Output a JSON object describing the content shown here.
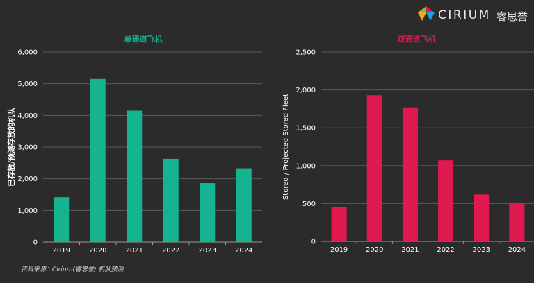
{
  "brand": {
    "name": "CIRIUM",
    "name_cn": "睿思誉",
    "logo_colors": [
      "#e5173f",
      "#7ac143",
      "#f7a81b",
      "#1aa0db"
    ]
  },
  "source": "资料来源：Cirium(睿思誉) 机队预测",
  "colors": {
    "background": "#2b2b2b",
    "narrowbody": "#16b391",
    "widebody": "#e01a50",
    "gridline": "#5a5a5a",
    "text": "#ffffff"
  },
  "chart_data": [
    {
      "type": "bar",
      "title": "单通道飞机",
      "ylabel": "已存放/预测存放的机队",
      "xlabel": "",
      "categories": [
        "2019",
        "2020",
        "2021",
        "2022",
        "2023",
        "2024"
      ],
      "values": [
        1420,
        5150,
        4150,
        2630,
        1860,
        2330
      ],
      "ylim": [
        0,
        6000
      ],
      "yticks": [
        "0",
        "1,000",
        "2,000",
        "3,000",
        "4,000",
        "5,000",
        "6,000"
      ],
      "grid": true,
      "legend": "none"
    },
    {
      "type": "bar",
      "title": "双通道飞机",
      "ylabel": "Stored / Projected Stored Fleet",
      "xlabel": "",
      "categories": [
        "2019",
        "2020",
        "2021",
        "2022",
        "2023",
        "2024"
      ],
      "values": [
        450,
        1930,
        1770,
        1070,
        620,
        510
      ],
      "ylim": [
        0,
        2500
      ],
      "yticks": [
        "0",
        "500",
        "1,000",
        "1,500",
        "2,000",
        "2,500"
      ],
      "grid": true,
      "legend": "none"
    }
  ]
}
